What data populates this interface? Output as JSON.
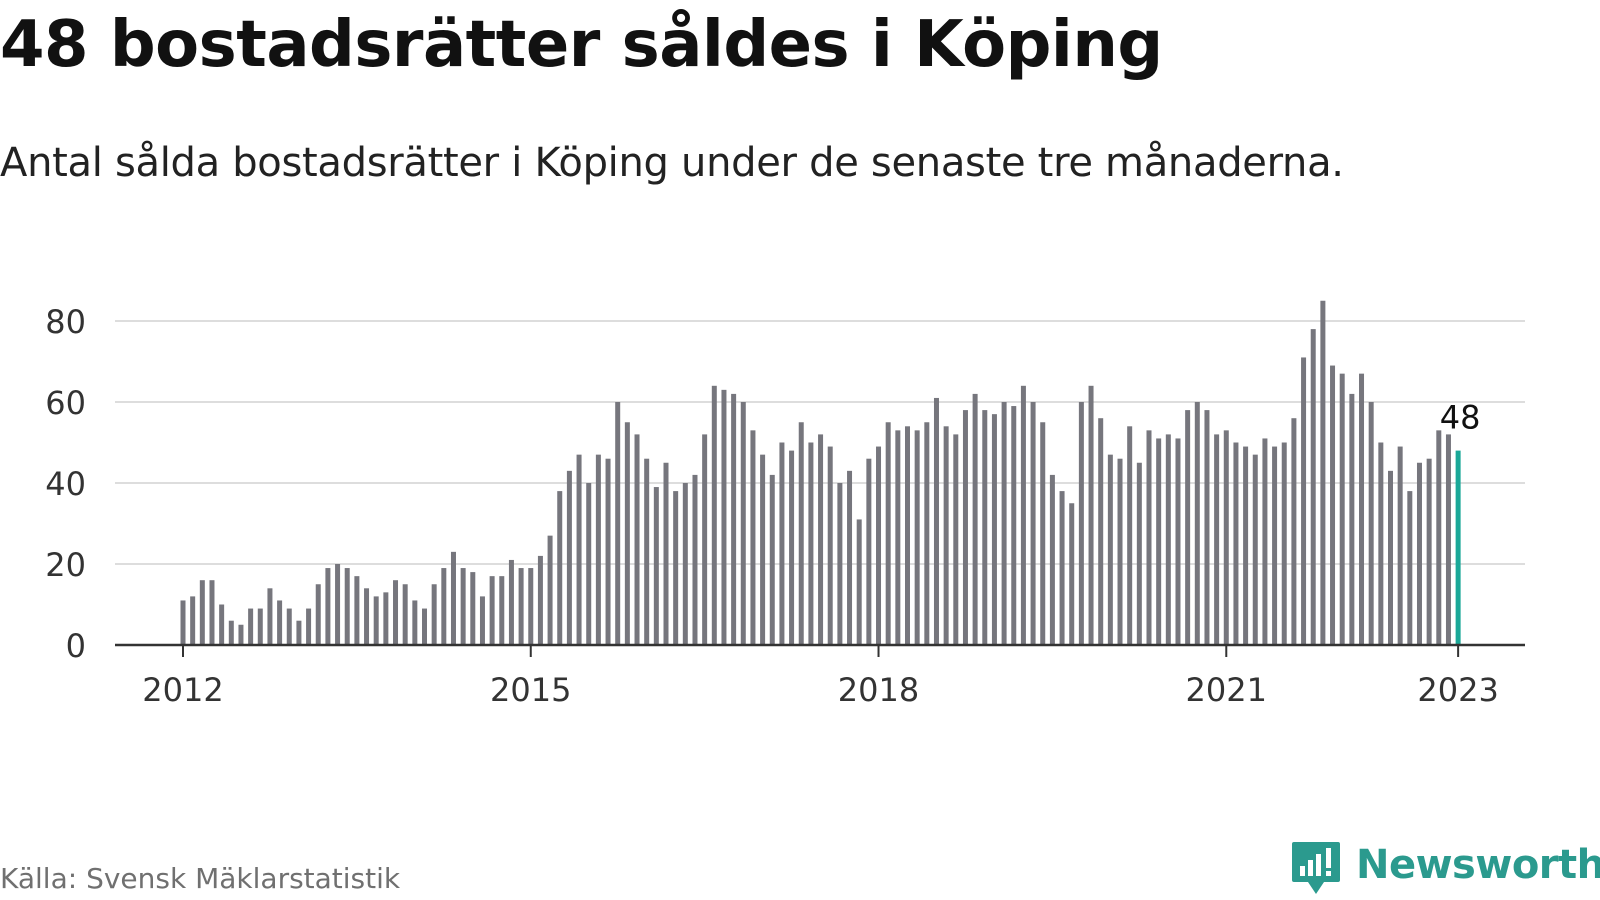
{
  "title": "48 bostadsrätter såldes i Köping",
  "subtitle": "Antal sålda bostadsrätter i Köping under de senaste tre månaderna.",
  "source": "Källa: Svensk Mäklarstatistik",
  "brand": {
    "name": "Newsworthy",
    "color": "#2b9a8e",
    "icon": "bar-chart-bubble-icon"
  },
  "colors": {
    "bars": "#76767d",
    "highlight": "#1aa898",
    "grid": "#dddddd",
    "axis": "#333333"
  },
  "chart_data": {
    "type": "bar",
    "ylim": [
      0,
      85
    ],
    "yticks": [
      0,
      20,
      40,
      60,
      80
    ],
    "grid": true,
    "x_ticks": [
      {
        "label": "2012",
        "index": 0
      },
      {
        "label": "2015",
        "index": 36
      },
      {
        "label": "2018",
        "index": 72
      },
      {
        "label": "2021",
        "index": 108
      },
      {
        "label": "2023",
        "index": 132
      }
    ],
    "start_period": "2012-01",
    "end_period": "2023-01",
    "values": [
      11,
      12,
      16,
      16,
      10,
      6,
      5,
      9,
      9,
      14,
      11,
      9,
      6,
      9,
      15,
      19,
      20,
      19,
      17,
      14,
      12,
      13,
      16,
      15,
      11,
      9,
      15,
      19,
      23,
      19,
      18,
      12,
      17,
      17,
      21,
      19,
      19,
      22,
      27,
      38,
      43,
      47,
      40,
      47,
      46,
      60,
      55,
      52,
      46,
      39,
      45,
      38,
      40,
      42,
      52,
      64,
      63,
      62,
      60,
      53,
      47,
      42,
      50,
      48,
      55,
      50,
      52,
      49,
      40,
      43,
      31,
      46,
      49,
      55,
      53,
      54,
      53,
      55,
      61,
      54,
      52,
      58,
      62,
      58,
      57,
      60,
      59,
      64,
      60,
      55,
      42,
      38,
      35,
      60,
      64,
      56,
      47,
      46,
      54,
      45,
      53,
      51,
      52,
      51,
      58,
      60,
      58,
      52,
      53,
      50,
      49,
      47,
      51,
      49,
      50,
      56,
      71,
      78,
      85,
      69,
      67,
      62,
      67,
      60,
      50,
      43,
      49,
      38,
      45,
      46,
      53,
      52,
      48
    ],
    "highlight": {
      "index": 132,
      "value": 48,
      "label": "48"
    }
  }
}
